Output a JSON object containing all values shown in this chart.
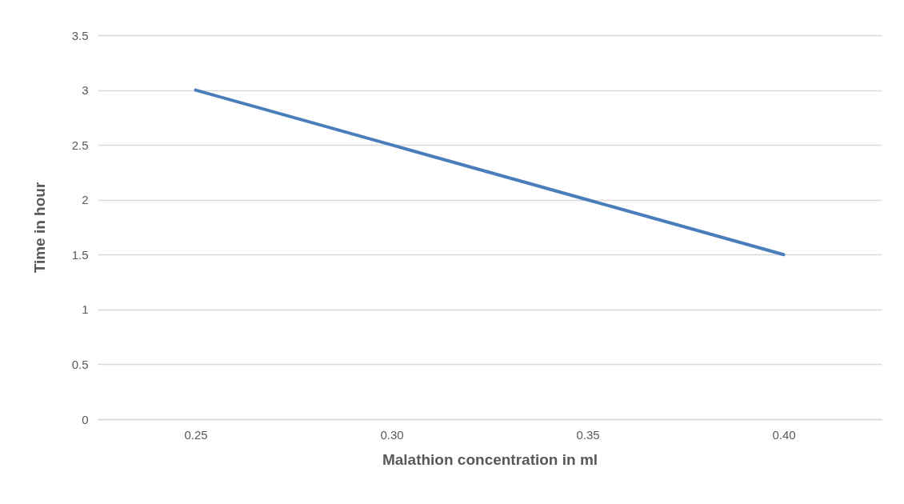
{
  "chart_data": {
    "type": "line",
    "xlabel": "Malathion concentration in ml",
    "ylabel": "Time in hour",
    "categories": [
      "0.25",
      "0.30",
      "0.35",
      "0.40"
    ],
    "series": [
      {
        "color": "#4a7ebb",
        "values": [
          3,
          2.5,
          2,
          1.5
        ]
      }
    ],
    "ylim": [
      0,
      3.5
    ],
    "yticks": [
      0,
      0.5,
      1,
      1.5,
      2,
      2.5,
      3,
      3.5
    ],
    "grid": "y",
    "marker": "none",
    "line_style": "solid",
    "legend": false
  }
}
